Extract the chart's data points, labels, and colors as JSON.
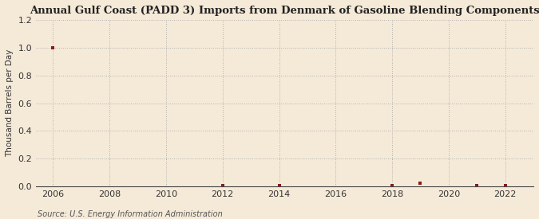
{
  "title": "Annual Gulf Coast (PADD 3) Imports from Denmark of Gasoline Blending Components",
  "ylabel": "Thousand Barrels per Day",
  "source": "Source: U.S. Energy Information Administration",
  "background_color": "#f5ead8",
  "plot_bg_color": "#f5ead8",
  "data_points": {
    "2006": 1.0,
    "2012": 0.003,
    "2014": 0.003,
    "2018": 0.003,
    "2019": 0.022,
    "2021": 0.003,
    "2022": 0.003
  },
  "marker_color": "#8b1a1a",
  "marker_size": 3,
  "xlim": [
    2005.4,
    2023.0
  ],
  "ylim": [
    0.0,
    1.2
  ],
  "xticks": [
    2006,
    2008,
    2010,
    2012,
    2014,
    2016,
    2018,
    2020,
    2022
  ],
  "yticks": [
    0.0,
    0.2,
    0.4,
    0.6,
    0.8,
    1.0,
    1.2
  ],
  "grid_color": "#aaaaaa",
  "grid_style": ":",
  "title_fontsize": 9.5,
  "ylabel_fontsize": 7.5,
  "tick_fontsize": 8,
  "source_fontsize": 7
}
